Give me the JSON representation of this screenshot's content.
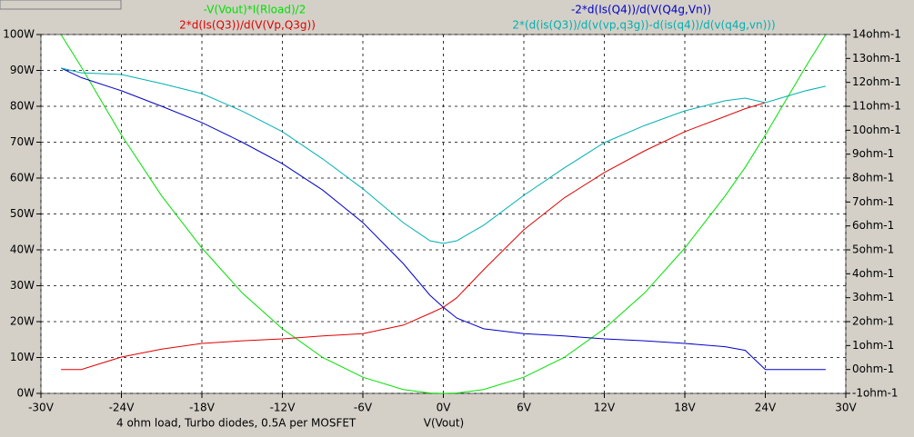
{
  "chart_data": {
    "type": "line",
    "xlabel": "V(Vout)",
    "annotation": "4 ohm load, Turbo diodes, 0.5A per MOSFET",
    "grid": true,
    "x": [
      -28.5,
      -27,
      -24,
      -21,
      -18,
      -15,
      -12,
      -9,
      -6,
      -3,
      -1,
      0,
      1,
      3,
      6,
      9,
      12,
      15,
      18,
      21,
      22.5,
      24,
      27,
      28.5
    ],
    "xlim": [
      -30,
      30
    ],
    "xticks": [
      {
        "value": -30,
        "label": "-30V"
      },
      {
        "value": -24,
        "label": "-24V"
      },
      {
        "value": -18,
        "label": "-18V"
      },
      {
        "value": -12,
        "label": "-12V"
      },
      {
        "value": -6,
        "label": "-6V"
      },
      {
        "value": 0,
        "label": "0V"
      },
      {
        "value": 6,
        "label": "6V"
      },
      {
        "value": 12,
        "label": "12V"
      },
      {
        "value": 18,
        "label": "18V"
      },
      {
        "value": 24,
        "label": "24V"
      },
      {
        "value": 30,
        "label": "30V"
      }
    ],
    "ylim": [
      0,
      100
    ],
    "yticks": [
      {
        "value": 0,
        "label": "0W"
      },
      {
        "value": 10,
        "label": "10W"
      },
      {
        "value": 20,
        "label": "20W"
      },
      {
        "value": 30,
        "label": "30W"
      },
      {
        "value": 40,
        "label": "40W"
      },
      {
        "value": 50,
        "label": "50W"
      },
      {
        "value": 60,
        "label": "60W"
      },
      {
        "value": 70,
        "label": "70W"
      },
      {
        "value": 80,
        "label": "80W"
      },
      {
        "value": 90,
        "label": "90W"
      },
      {
        "value": 100,
        "label": "100W"
      }
    ],
    "y2lim": [
      -1,
      14
    ],
    "y2ticks": [
      {
        "value": -1,
        "label": "-1ohm-1"
      },
      {
        "value": 0,
        "label": "0ohm-1"
      },
      {
        "value": 1,
        "label": "1ohm-1"
      },
      {
        "value": 2,
        "label": "2ohm-1"
      },
      {
        "value": 3,
        "label": "3ohm-1"
      },
      {
        "value": 4,
        "label": "4ohm-1"
      },
      {
        "value": 5,
        "label": "5ohm-1"
      },
      {
        "value": 6,
        "label": "6ohm-1"
      },
      {
        "value": 7,
        "label": "7ohm-1"
      },
      {
        "value": 8,
        "label": "8ohm-1"
      },
      {
        "value": 9,
        "label": "9ohm-1"
      },
      {
        "value": 10,
        "label": "10ohm-1"
      },
      {
        "value": 11,
        "label": "11ohm-1"
      },
      {
        "value": 12,
        "label": "12ohm-1"
      },
      {
        "value": 13,
        "label": "13ohm-1"
      },
      {
        "value": 14,
        "label": "14ohm-1"
      }
    ],
    "series": [
      {
        "name": "-V(Vout)*I(Rload)/2",
        "color": "#00e000",
        "axis": "y",
        "values": [
          100,
          91,
          72,
          55,
          40.5,
          28,
          18,
          10,
          4.5,
          1.1,
          0.1,
          0,
          0.1,
          1.1,
          4.5,
          10,
          18,
          28,
          40.5,
          55,
          63,
          72,
          91,
          100
        ]
      },
      {
        "name": "2*d(Is(Q3))/d(V(Vp,Q3g))",
        "color": "#e00000",
        "axis": "y2",
        "values": [
          0,
          0,
          0.52,
          0.85,
          1.09,
          1.2,
          1.28,
          1.4,
          1.5,
          1.85,
          2.34,
          2.6,
          3.0,
          4.17,
          5.84,
          7.17,
          8.23,
          9.14,
          9.94,
          10.58,
          10.9,
          11.15,
          null,
          null
        ]
      },
      {
        "name": "-2*d(Is(Q4))/d(V(Q4g,Vn))",
        "color": "#0000c8",
        "axis": "y2",
        "values": [
          12.6,
          12.2,
          11.65,
          11.0,
          10.32,
          9.5,
          8.6,
          7.5,
          6.14,
          4.43,
          3.1,
          2.6,
          2.15,
          1.7,
          1.5,
          1.4,
          1.28,
          1.2,
          1.09,
          0.95,
          0.8,
          0,
          0,
          0
        ]
      },
      {
        "name": "2*(d(is(Q3))/d(v(vp,q3g))-d(is(q4))/d(v(q4g,vn)))",
        "color": "#00b0b0",
        "axis": "y2",
        "values": [
          12.6,
          12.4,
          12.33,
          11.95,
          11.53,
          10.8,
          9.94,
          8.8,
          7.55,
          6.14,
          5.38,
          5.27,
          5.38,
          6.03,
          7.28,
          8.42,
          9.48,
          10.2,
          10.81,
          11.23,
          11.34,
          11.15,
          11.65,
          11.84
        ]
      }
    ]
  }
}
